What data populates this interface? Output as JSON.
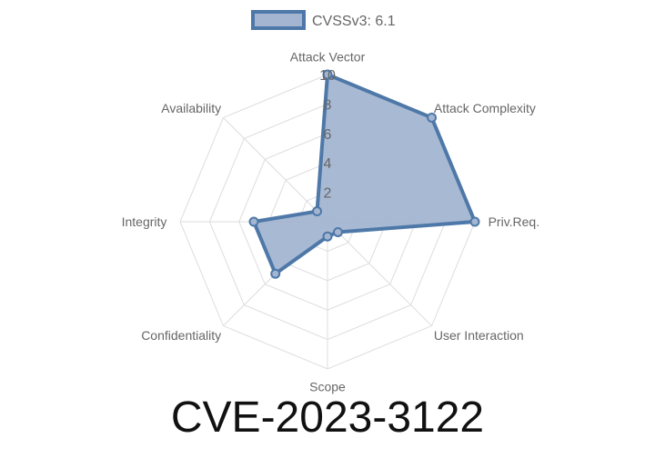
{
  "chart_data": {
    "type": "radar",
    "title": "CVE-2023-3122",
    "categories": [
      "Attack Vector",
      "Attack Complexity",
      "Priv.Req.",
      "User Interaction",
      "Scope",
      "Confidentiality",
      "Integrity",
      "Availability"
    ],
    "series": [
      {
        "name": "CVSSv3: 6.1",
        "values": [
          10,
          10,
          10,
          1,
          1,
          5,
          5,
          1
        ]
      }
    ],
    "rlim": [
      0,
      10
    ],
    "ticks": [
      "2",
      "4",
      "6",
      "8",
      "10"
    ],
    "tick_values": [
      2,
      4,
      6,
      8,
      10
    ],
    "grid": true,
    "legend": "top",
    "colors": {
      "fill": "#a3b5d1",
      "stroke": "#4e78a8",
      "grid": "#dddddd"
    }
  }
}
